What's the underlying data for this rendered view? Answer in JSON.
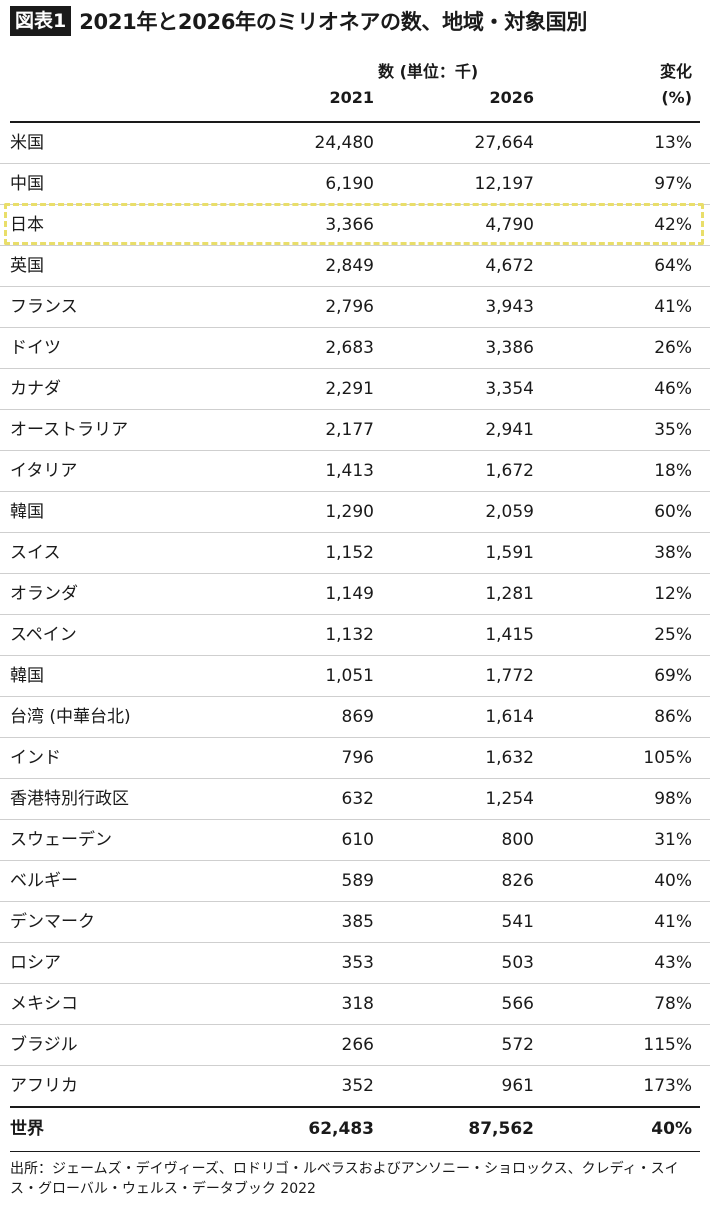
{
  "figure": {
    "badge": "図表1",
    "title": "2021年と2026年のミリオネアの数、地域・対象国別"
  },
  "header": {
    "unit_label": "数 (単位：千)",
    "col_2021": "2021",
    "col_2026": "2026",
    "change_label": "変化",
    "change_unit": "(%)"
  },
  "rows": [
    {
      "country": "米国",
      "v2021": "24,480",
      "v2026": "27,664",
      "change": "13%"
    },
    {
      "country": "中国",
      "v2021": "6,190",
      "v2026": "12,197",
      "change": "97%"
    },
    {
      "country": "日本",
      "v2021": "3,366",
      "v2026": "4,790",
      "change": "42%"
    },
    {
      "country": "英国",
      "v2021": "2,849",
      "v2026": "4,672",
      "change": "64%"
    },
    {
      "country": "フランス",
      "v2021": "2,796",
      "v2026": "3,943",
      "change": "41%"
    },
    {
      "country": "ドイツ",
      "v2021": "2,683",
      "v2026": "3,386",
      "change": "26%"
    },
    {
      "country": "カナダ",
      "v2021": "2,291",
      "v2026": "3,354",
      "change": "46%"
    },
    {
      "country": "オーストラリア",
      "v2021": "2,177",
      "v2026": "2,941",
      "change": "35%"
    },
    {
      "country": "イタリア",
      "v2021": "1,413",
      "v2026": "1,672",
      "change": "18%"
    },
    {
      "country": "韓国",
      "v2021": "1,290",
      "v2026": "2,059",
      "change": "60%"
    },
    {
      "country": "スイス",
      "v2021": "1,152",
      "v2026": "1,591",
      "change": "38%"
    },
    {
      "country": "オランダ",
      "v2021": "1,149",
      "v2026": "1,281",
      "change": "12%"
    },
    {
      "country": "スペイン",
      "v2021": "1,132",
      "v2026": "1,415",
      "change": "25%"
    },
    {
      "country": "韓国",
      "v2021": "1,051",
      "v2026": "1,772",
      "change": "69%"
    },
    {
      "country": "台湾 (中華台北)",
      "v2021": "869",
      "v2026": "1,614",
      "change": "86%"
    },
    {
      "country": "インド",
      "v2021": "796",
      "v2026": "1,632",
      "change": "105%"
    },
    {
      "country": "香港特別行政区",
      "v2021": "632",
      "v2026": "1,254",
      "change": "98%"
    },
    {
      "country": "スウェーデン",
      "v2021": "610",
      "v2026": "800",
      "change": "31%"
    },
    {
      "country": "ベルギー",
      "v2021": "589",
      "v2026": "826",
      "change": "40%"
    },
    {
      "country": "デンマーク",
      "v2021": "385",
      "v2026": "541",
      "change": "41%"
    },
    {
      "country": "ロシア",
      "v2021": "353",
      "v2026": "503",
      "change": "43%"
    },
    {
      "country": "メキシコ",
      "v2021": "318",
      "v2026": "566",
      "change": "78%"
    },
    {
      "country": "ブラジル",
      "v2021": "266",
      "v2026": "572",
      "change": "115%"
    },
    {
      "country": "アフリカ",
      "v2021": "352",
      "v2026": "961",
      "change": "173%"
    }
  ],
  "highlighted_country": "日本",
  "highlight_color": "#e9de6a",
  "total": {
    "label": "世界",
    "v2021": "62,483",
    "v2026": "87,562",
    "change": "40%"
  },
  "source": "出所：ジェームズ・デイヴィーズ、ロドリゴ・ルベラスおよびアンソニー・ショロックス、クレディ・スイス・グローバル・ウェルス・データブック 2022"
}
